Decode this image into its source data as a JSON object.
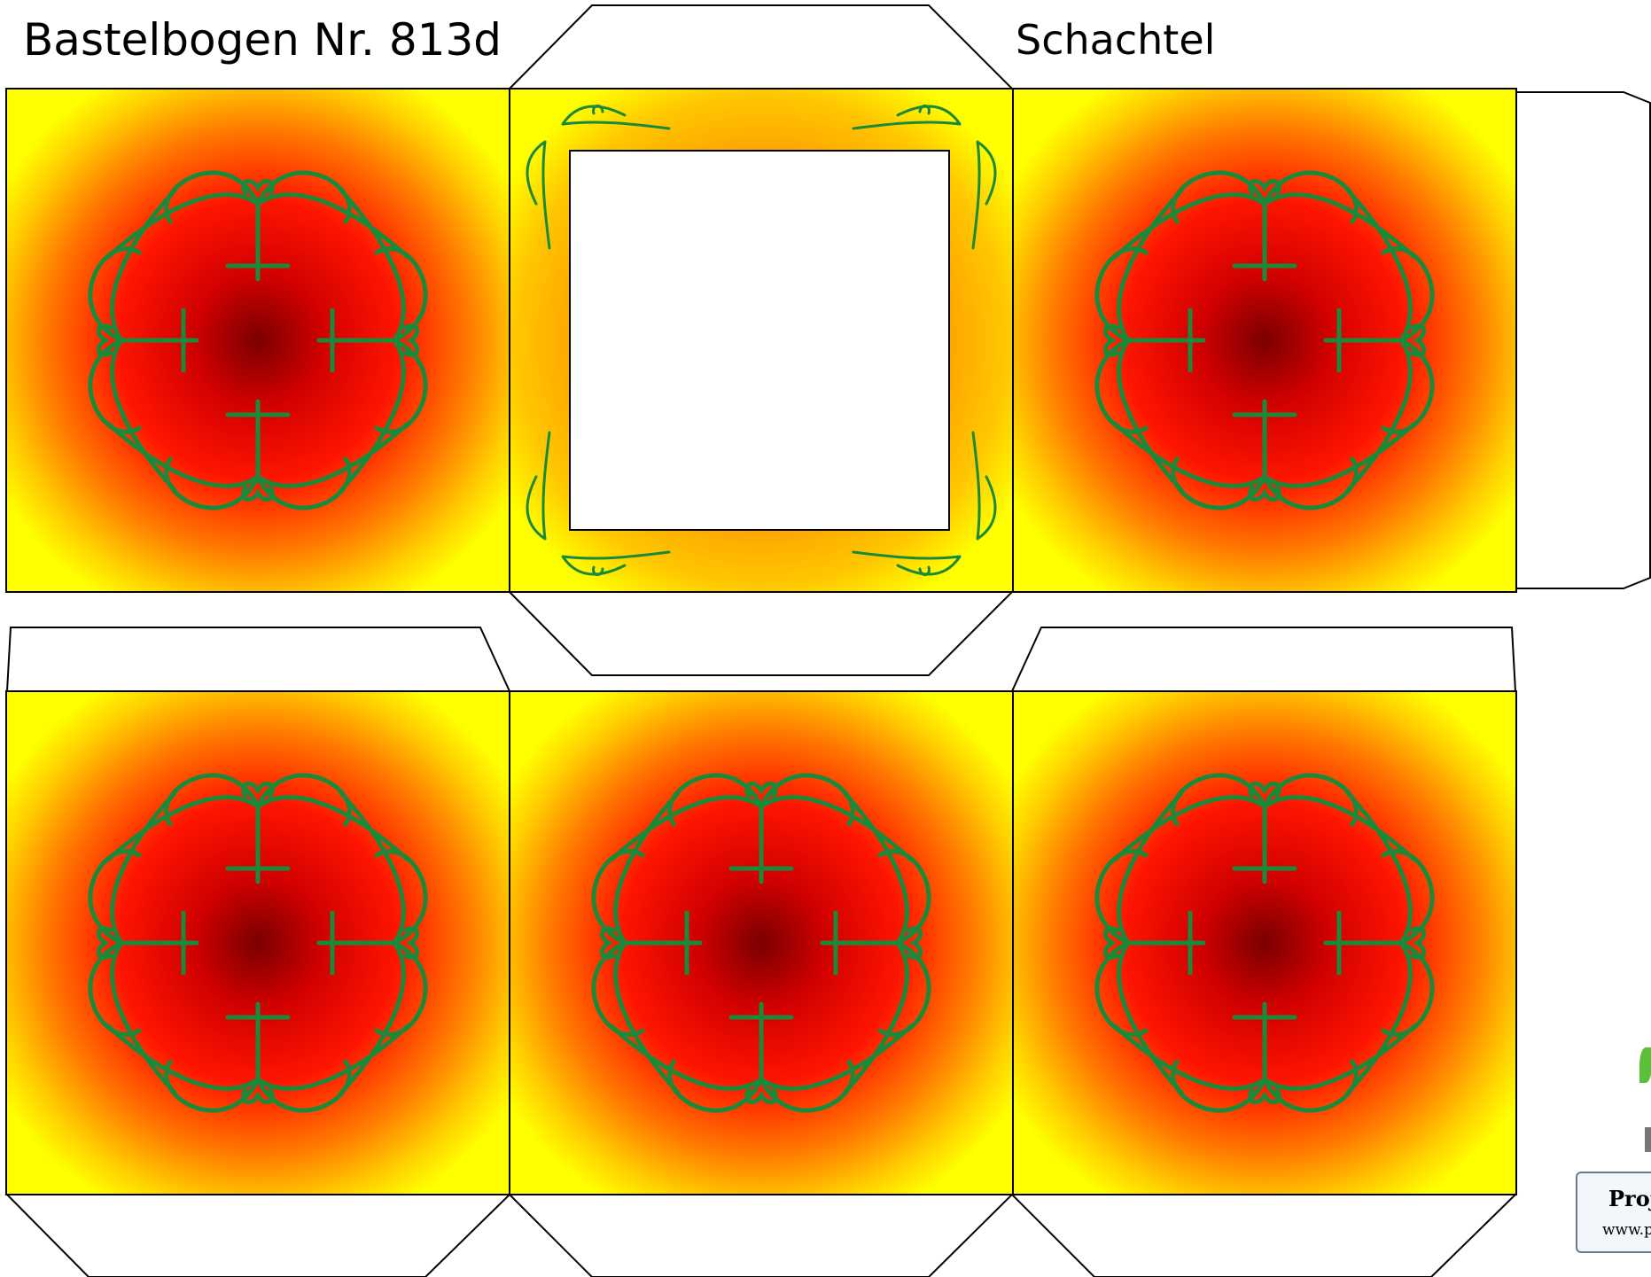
{
  "sheet": {
    "title": "Bastelbogen Nr. 813d",
    "subtitle": "Schachtel"
  },
  "colors": {
    "outer": "#ffff00",
    "mid": "#ff9a00",
    "inner": "#ff1a00",
    "center": "#7a0000",
    "ornament": "#1a8a3a",
    "outline": "#000000"
  },
  "logo": {
    "text": "Proj",
    "url": "www.p"
  }
}
